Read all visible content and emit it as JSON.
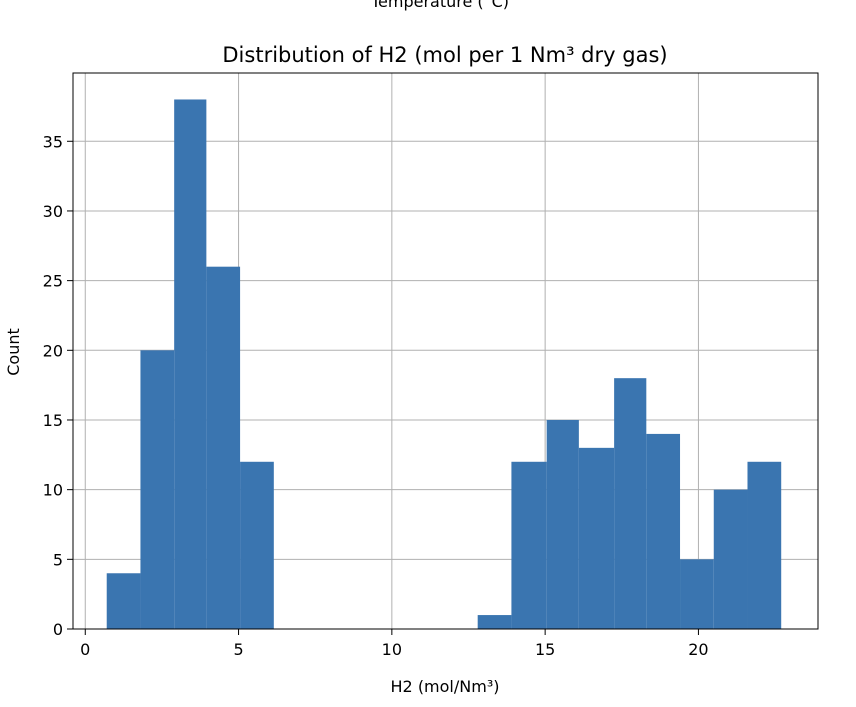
{
  "top_cut_text": "Temperature (°C)",
  "chart_data": {
    "type": "bar",
    "title": "Distribution of H2 (mol per 1 Nm³ dry gas)",
    "xlabel": "H2 (mol/Nm³)",
    "ylabel": "Count",
    "xlim": [
      -0.4,
      23.9
    ],
    "ylim": [
      0,
      39.9
    ],
    "grid": true,
    "bar_color": "#3a75b0",
    "xticks": [
      0,
      5,
      10,
      15,
      20
    ],
    "yticks": [
      0,
      5,
      10,
      15,
      20,
      25,
      30,
      35
    ],
    "bins": [
      {
        "x0": 0.7,
        "x1": 1.8,
        "count": 4
      },
      {
        "x0": 1.8,
        "x1": 2.9,
        "count": 20
      },
      {
        "x0": 2.9,
        "x1": 3.95,
        "count": 38
      },
      {
        "x0": 3.95,
        "x1": 5.05,
        "count": 26
      },
      {
        "x0": 5.05,
        "x1": 6.15,
        "count": 12
      },
      {
        "x0": 12.8,
        "x1": 13.9,
        "count": 1
      },
      {
        "x0": 13.9,
        "x1": 15.05,
        "count": 12
      },
      {
        "x0": 15.05,
        "x1": 16.1,
        "count": 15
      },
      {
        "x0": 16.1,
        "x1": 17.25,
        "count": 13
      },
      {
        "x0": 17.25,
        "x1": 18.3,
        "count": 18
      },
      {
        "x0": 18.3,
        "x1": 19.4,
        "count": 14
      },
      {
        "x0": 19.4,
        "x1": 20.5,
        "count": 5
      },
      {
        "x0": 20.5,
        "x1": 21.6,
        "count": 10
      },
      {
        "x0": 21.6,
        "x1": 22.7,
        "count": 12
      }
    ]
  }
}
